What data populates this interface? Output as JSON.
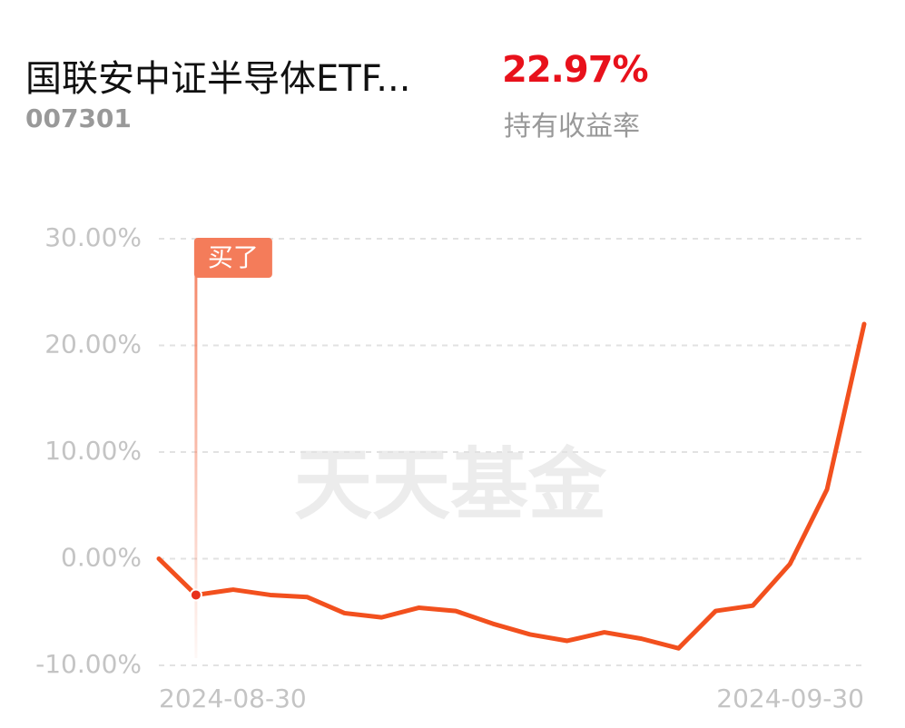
{
  "header": {
    "fund_name": "国联安中证半导体ETF...",
    "fund_code": "007301",
    "return_value": "22.97%",
    "return_label": "持有收益率"
  },
  "chart_data": {
    "type": "line",
    "watermark": "天天基金",
    "categories": [
      "2024-08-30",
      null,
      null,
      null,
      null,
      null,
      null,
      null,
      null,
      null,
      null,
      null,
      null,
      null,
      null,
      null,
      null,
      null,
      null,
      "2024-09-30"
    ],
    "series": [
      {
        "color": "#f2501e",
        "values": [
          0,
          -3.4,
          -2.9,
          -3.4,
          -3.6,
          -5.1,
          -5.5,
          -4.6,
          -4.9,
          -6.1,
          -7.1,
          -7.7,
          -6.9,
          -7.5,
          -8.4,
          -4.9,
          -4.4,
          -0.5,
          6.5,
          22.0
        ]
      }
    ],
    "ylim": [
      -10,
      30
    ],
    "yticks": [
      {
        "value": -10,
        "label": "-10.00%"
      },
      {
        "value": 0,
        "label": "0.00%"
      },
      {
        "value": 10,
        "label": "10.00%"
      },
      {
        "value": 20,
        "label": "20.00%"
      },
      {
        "value": 30,
        "label": "30.00%"
      }
    ],
    "grid": true,
    "annotations": [
      {
        "text": "买了",
        "at": 1,
        "color": "#f47c5a"
      }
    ]
  }
}
